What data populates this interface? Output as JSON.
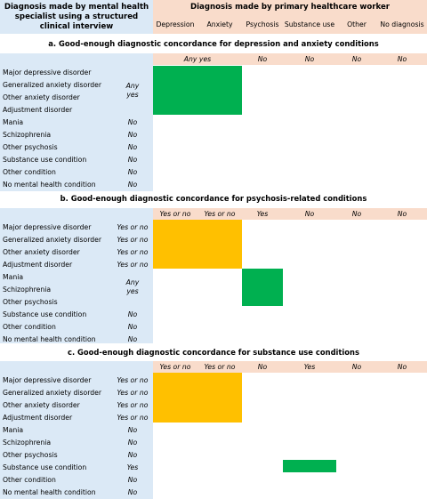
{
  "header": {
    "left_title": "Diagnosis made by mental health specialist using a structured clinical interview",
    "right_title": "Diagnosis made by primary healthcare worker",
    "columns": [
      "Depression",
      "Anxiety",
      "Psychosis",
      "Substance use",
      "Other",
      "No diagnosis"
    ]
  },
  "sections": [
    {
      "title": "a. Good-enough diagnostic concordance for depression and anxiety conditions",
      "any_yes_label": "Any yes",
      "col_values": [
        "No",
        "No",
        "No",
        "No"
      ],
      "row_values": [
        "Any yes",
        "No",
        "No",
        "No",
        "No",
        "No",
        "No"
      ],
      "rows": [
        "Major depressive disorder",
        "Generalized anxiety disorder",
        "Other anxiety disorder",
        "Adjustment disorder",
        "Mania",
        "Schizophrenia",
        "Other psychosis",
        "Substance use condition",
        "Other condition",
        "No mental health condition"
      ]
    },
    {
      "title": "b. Good-enough diagnostic concordance for psychosis-related conditions",
      "col_values": [
        "Yes or no",
        "Yes or no",
        "Yes",
        "No",
        "No",
        "No"
      ],
      "row_values": [
        "Yes or no",
        "Yes or no",
        "Yes or no",
        "Yes or no",
        "Any yes",
        "No",
        "No",
        "No"
      ],
      "rows": [
        "Major depressive disorder",
        "Generalized anxiety disorder",
        "Other anxiety disorder",
        "Adjustment disorder",
        "Mania",
        "Schizophrenia",
        "Other psychosis",
        "Substance use condition",
        "Other condition",
        "No mental health condition"
      ]
    },
    {
      "title": "c. Good-enough diagnostic concordance for substance use conditions",
      "col_values": [
        "Yes or no",
        "Yes or no",
        "No",
        "Yes",
        "No",
        "No"
      ],
      "row_values": [
        "Yes or no",
        "Yes or no",
        "Yes or no",
        "Yes or no",
        "No",
        "No",
        "No",
        "Yes",
        "No",
        "No"
      ],
      "rows": [
        "Major depressive disorder",
        "Generalized anxiety disorder",
        "Other anxiety disorder",
        "Adjustment disorder",
        "Mania",
        "Schizophrenia",
        "Other psychosis",
        "Substance use condition",
        "Other condition",
        "No mental health condition"
      ]
    }
  ],
  "colors": {
    "left_bg": "#dbe9f6",
    "right_bg": "#f9dccb",
    "concordant_green": "#00b050",
    "partial_orange": "#ffc000"
  }
}
